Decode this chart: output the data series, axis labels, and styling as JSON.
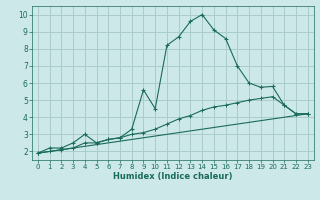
{
  "xlabel": "Humidex (Indice chaleur)",
  "ylabel": "",
  "bg_color": "#cce8e8",
  "grid_color": "#aacccc",
  "line_color": "#1a6b5a",
  "xlim": [
    -0.5,
    23.5
  ],
  "ylim": [
    1.5,
    10.5
  ],
  "xticks": [
    0,
    1,
    2,
    3,
    4,
    5,
    6,
    7,
    8,
    9,
    10,
    11,
    12,
    13,
    14,
    15,
    16,
    17,
    18,
    19,
    20,
    21,
    22,
    23
  ],
  "yticks": [
    2,
    3,
    4,
    5,
    6,
    7,
    8,
    9,
    10
  ],
  "series1_x": [
    0,
    1,
    2,
    3,
    4,
    5,
    6,
    7,
    8,
    9,
    10,
    11,
    12,
    13,
    14,
    15,
    16,
    17,
    18,
    19,
    20,
    21,
    22,
    23
  ],
  "series1_y": [
    1.9,
    2.2,
    2.2,
    2.5,
    3.0,
    2.5,
    2.7,
    2.8,
    3.3,
    5.6,
    4.5,
    8.2,
    8.7,
    9.6,
    10.0,
    9.1,
    8.6,
    7.0,
    6.0,
    5.75,
    5.8,
    4.7,
    4.2,
    4.2
  ],
  "series2_x": [
    0,
    1,
    2,
    3,
    4,
    5,
    6,
    7,
    8,
    9,
    10,
    11,
    12,
    13,
    14,
    15,
    16,
    17,
    18,
    19,
    20,
    21,
    22,
    23
  ],
  "series2_y": [
    1.9,
    2.0,
    2.1,
    2.2,
    2.5,
    2.5,
    2.7,
    2.8,
    3.0,
    3.1,
    3.3,
    3.6,
    3.9,
    4.1,
    4.4,
    4.6,
    4.7,
    4.85,
    5.0,
    5.1,
    5.2,
    4.7,
    4.2,
    4.2
  ],
  "series3_x": [
    0,
    23
  ],
  "series3_y": [
    1.9,
    4.2
  ]
}
